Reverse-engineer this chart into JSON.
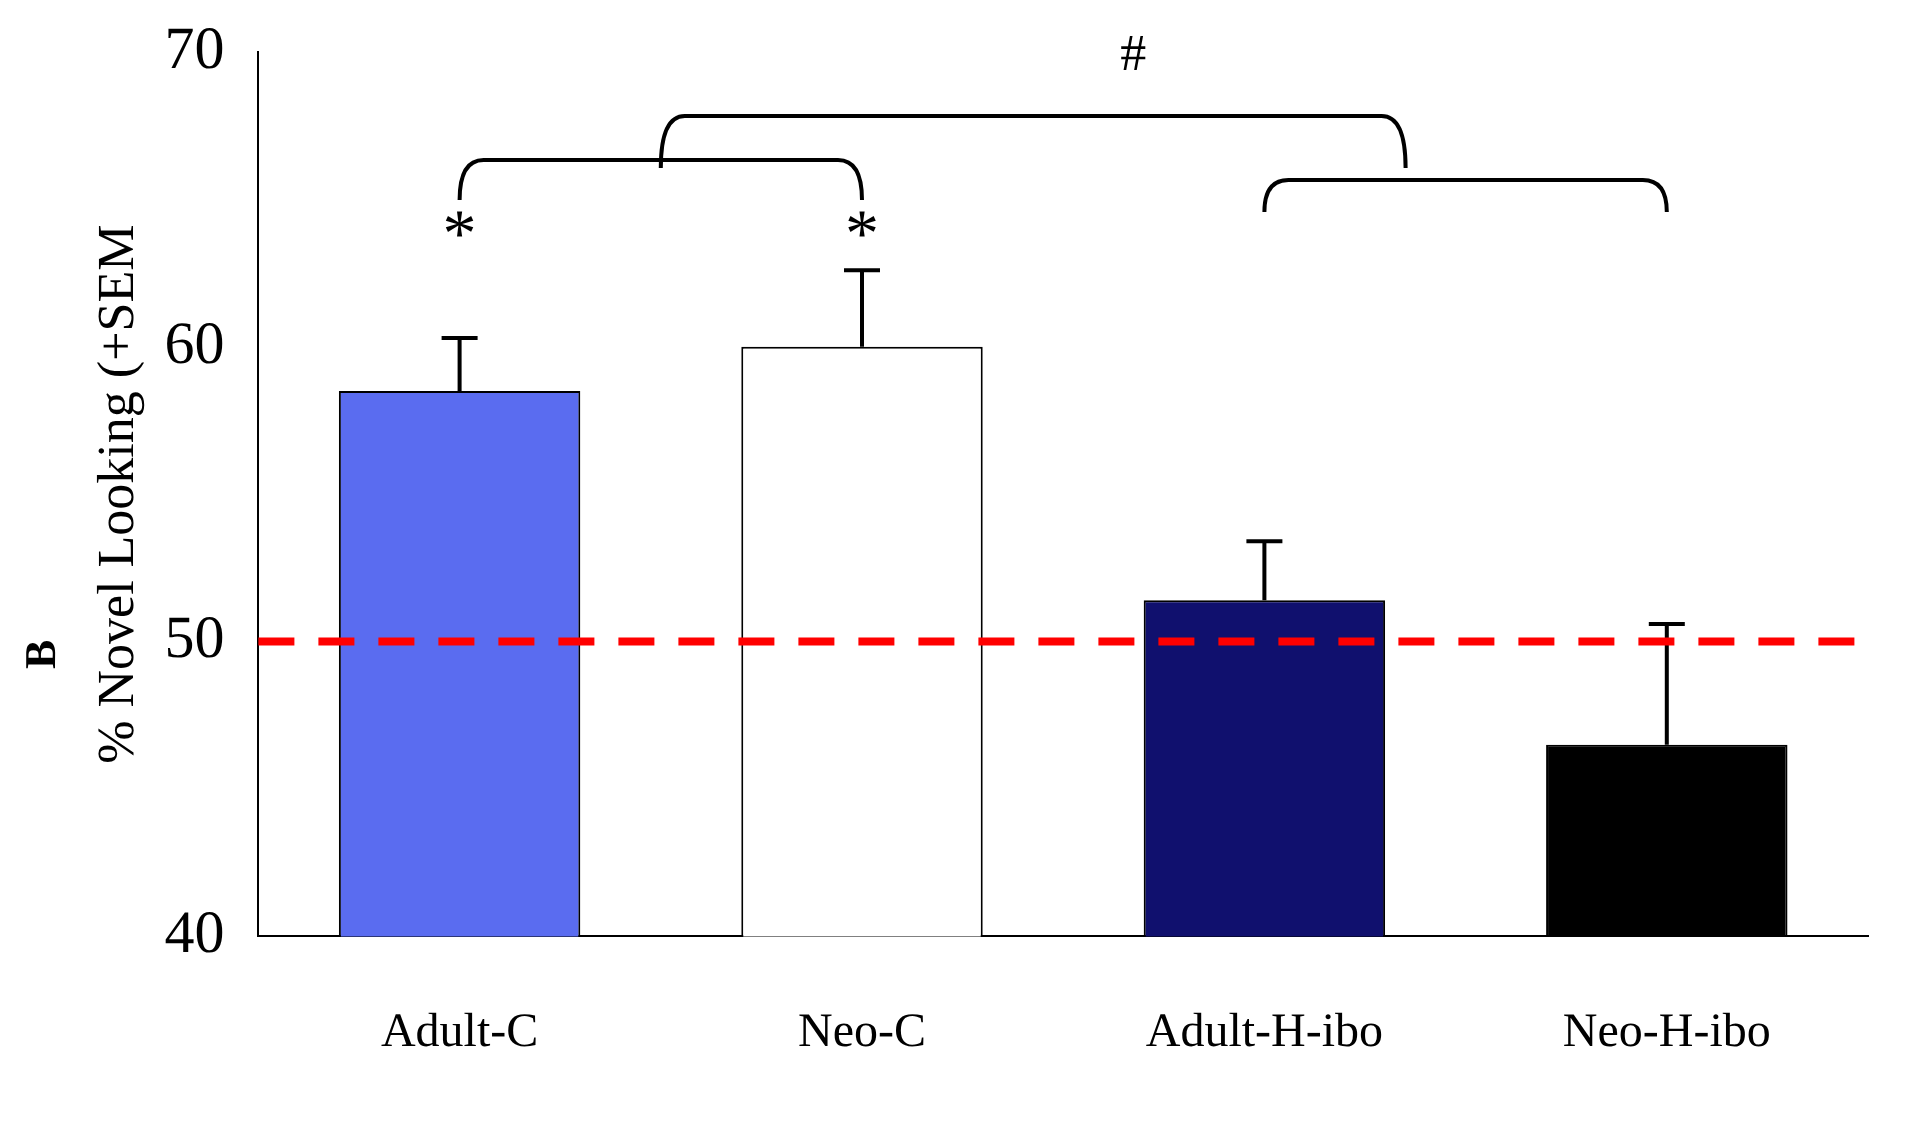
{
  "chart_data": {
    "type": "bar",
    "ylabel": "% Novel Looking (+SEM",
    "categories": [
      "Adult-C",
      "Neo-C",
      "Adult-H-ibo",
      "Neo-H-ibo"
    ],
    "values": [
      58.5,
      60,
      51.4,
      46.5
    ],
    "errors": [
      1.8,
      2.6,
      2.0,
      4.1
    ],
    "colors": [
      "#5a6cf0",
      "#ffffff",
      "#10106e",
      "#000000"
    ],
    "ylim": [
      40,
      70
    ],
    "yticks": [
      40,
      50,
      60,
      70
    ],
    "grid": false,
    "legend": false,
    "ref_lines": [
      {
        "axis": "y",
        "value": 50,
        "color": "#ff0000",
        "line_style": "dashed"
      }
    ],
    "annotations": [
      "*",
      "*",
      "#",
      "B"
    ]
  }
}
